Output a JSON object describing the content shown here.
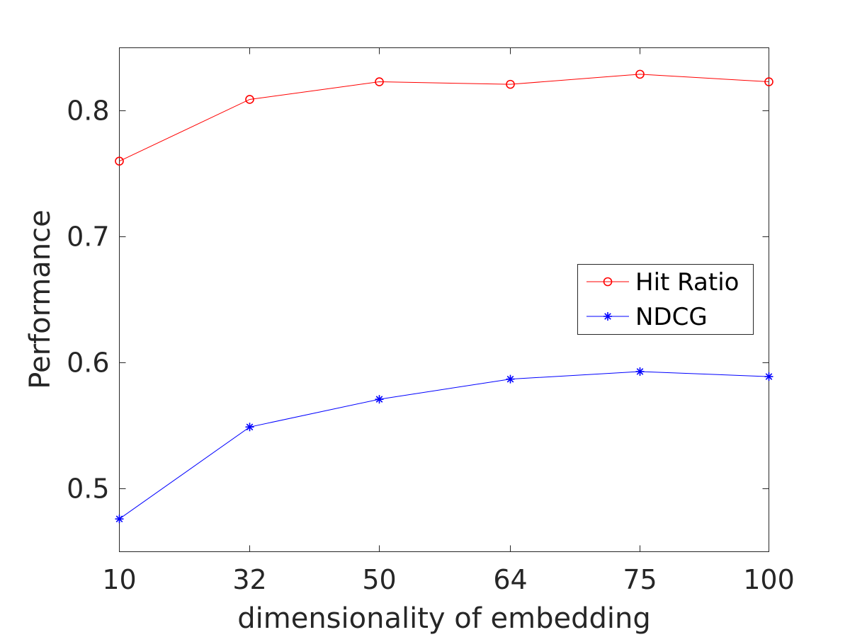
{
  "chart_data": {
    "type": "line",
    "title": "",
    "xlabel": "dimensionality of embedding",
    "ylabel": "Performance",
    "categories": [
      "10",
      "32",
      "50",
      "64",
      "75",
      "100"
    ],
    "yticks": [
      "0.5",
      "0.6",
      "0.7",
      "0.8"
    ],
    "ylim": [
      0.45,
      0.85
    ],
    "grid": false,
    "legend_position": "right",
    "series": [
      {
        "name": "Hit Ratio",
        "color": "#ff0000",
        "marker": "circle",
        "values": [
          0.76,
          0.809,
          0.823,
          0.821,
          0.829,
          0.823
        ]
      },
      {
        "name": "NDCG",
        "color": "#0000ff",
        "marker": "asterisk",
        "values": [
          0.476,
          0.549,
          0.571,
          0.587,
          0.593,
          0.589
        ]
      }
    ]
  }
}
